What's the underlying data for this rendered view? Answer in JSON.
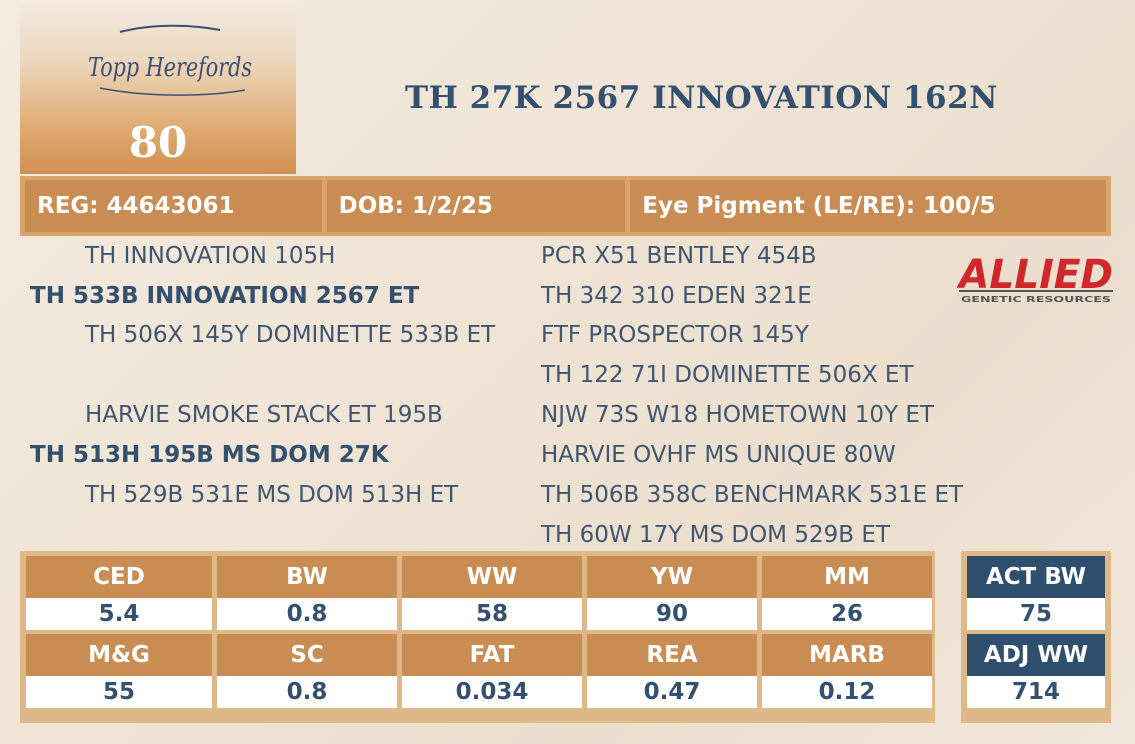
{
  "logo": {
    "text": "Topp Herefords"
  },
  "lot_number": "80",
  "animal_name": "TH 27K 2567 INNOVATION 162N",
  "info": {
    "reg": "REG: 44643061",
    "dob": "DOB: 1/2/25",
    "eye_pigment": "Eye Pigment (LE/RE): 100/5"
  },
  "pedigree": {
    "sire_sire": "TH INNOVATION 105H",
    "sire": "TH 533B INNOVATION 2567 ET",
    "sire_dam": "TH 506X 145Y DOMINETTE 533B ET",
    "dam_sire": "HARVIE SMOKE STACK ET 195B",
    "dam": "TH 513H 195B MS DOM 27K",
    "dam_dam": "TH 529B 531E MS DOM 513H ET",
    "ss_sire": "PCR X51 BENTLEY 454B",
    "ss_dam": "TH 342 310 EDEN 321E",
    "sd_sire": "FTF PROSPECTOR 145Y",
    "sd_dam": "TH 122 71I DOMINETTE 506X ET",
    "ds_sire": "NJW 73S W18 HOMETOWN 10Y ET",
    "ds_dam": "HARVIE OVHF MS UNIQUE 80W",
    "dd_sire": "TH 506B 358C BENCHMARK 531E ET",
    "dd_dam": "TH 60W 17Y MS DOM 529B ET"
  },
  "allied_logo": {
    "main": "ALLIED",
    "sub": "GENETIC RESOURCES"
  },
  "stats": {
    "row1_heads": [
      "CED",
      "BW",
      "WW",
      "YW",
      "MM"
    ],
    "row1_vals": [
      "5.4",
      "0.8",
      "58",
      "90",
      "26"
    ],
    "row2_heads": [
      "M&G",
      "SC",
      "FAT",
      "REA",
      "MARB"
    ],
    "row2_vals": [
      "55",
      "0.8",
      "0.034",
      "0.47",
      "0.12"
    ]
  },
  "actuals": {
    "act_bw_label": "ACT BW",
    "act_bw": "75",
    "adj_ww_label": "ADJ WW",
    "adj_ww": "714"
  },
  "colors": {
    "accent_orange": "#c98d53",
    "frame_tan": "#deb889",
    "navy": "#2f4f6f",
    "allied_red": "#d0272d"
  }
}
